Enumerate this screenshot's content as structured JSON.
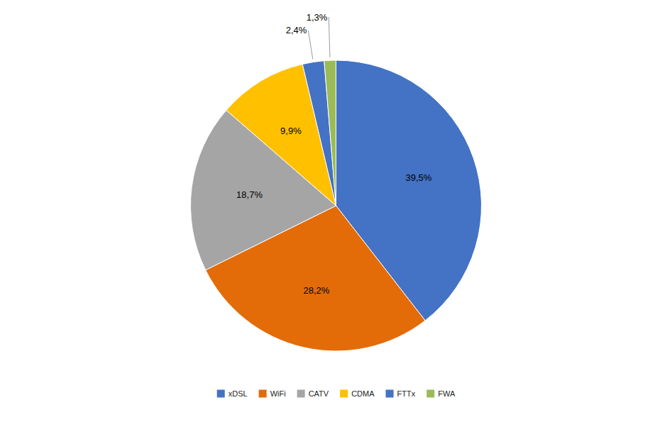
{
  "chart_data": {
    "type": "pie",
    "categories": [
      "xDSL",
      "WiFi",
      "CATV",
      "CDMA",
      "FTTx",
      "FWA"
    ],
    "values": [
      39.5,
      28.2,
      18.7,
      9.9,
      2.4,
      1.3
    ],
    "value_labels": [
      "39,5%",
      "28,2%",
      "18,7%",
      "9,9%",
      "2,4%",
      "1,3%"
    ],
    "colors": [
      "#4472C4",
      "#E36C09",
      "#A5A5A5",
      "#FFC000",
      "#4472C4",
      "#9BBB59"
    ],
    "data_labels": true,
    "legend": "bottom"
  }
}
